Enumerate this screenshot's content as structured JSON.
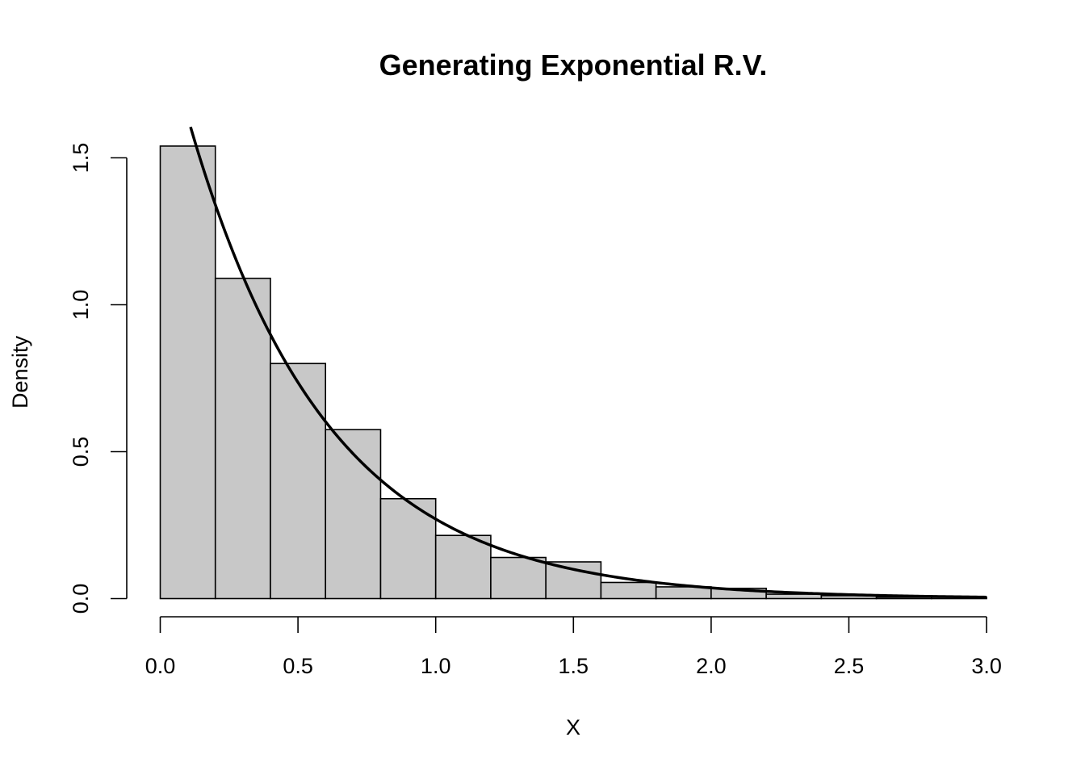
{
  "chart_data": {
    "type": "bar",
    "subtype": "histogram",
    "title": "Generating Exponential R.V.",
    "xlabel": "X",
    "ylabel": "Density",
    "xlim": [
      0,
      3
    ],
    "ylim": [
      0,
      1.6
    ],
    "x_ticks": [
      "0.0",
      "0.5",
      "1.0",
      "1.5",
      "2.0",
      "2.5",
      "3.0"
    ],
    "y_ticks": [
      "0.0",
      "0.5",
      "1.0",
      "1.5"
    ],
    "bins": [
      {
        "from": 0.0,
        "to": 0.2,
        "value": 1.54
      },
      {
        "from": 0.2,
        "to": 0.4,
        "value": 1.09
      },
      {
        "from": 0.4,
        "to": 0.6,
        "value": 0.8
      },
      {
        "from": 0.6,
        "to": 0.8,
        "value": 0.575
      },
      {
        "from": 0.8,
        "to": 1.0,
        "value": 0.34
      },
      {
        "from": 1.0,
        "to": 1.2,
        "value": 0.215
      },
      {
        "from": 1.2,
        "to": 1.4,
        "value": 0.14
      },
      {
        "from": 1.4,
        "to": 1.6,
        "value": 0.125
      },
      {
        "from": 1.6,
        "to": 1.8,
        "value": 0.055
      },
      {
        "from": 1.8,
        "to": 2.0,
        "value": 0.04
      },
      {
        "from": 2.0,
        "to": 2.2,
        "value": 0.035
      },
      {
        "from": 2.2,
        "to": 2.4,
        "value": 0.015
      },
      {
        "from": 2.4,
        "to": 2.6,
        "value": 0.01
      },
      {
        "from": 2.6,
        "to": 2.8,
        "value": 0.005
      },
      {
        "from": 2.8,
        "to": 3.0,
        "value": 0.005
      }
    ],
    "curve": {
      "function": "exponential density",
      "rate": 2,
      "x_range": [
        0.11,
        3.0
      ]
    },
    "grid": false,
    "legend": "none",
    "colors": {
      "bar_fill": "#c8c8c8",
      "bar_stroke": "#000000",
      "curve": "#000000"
    }
  }
}
